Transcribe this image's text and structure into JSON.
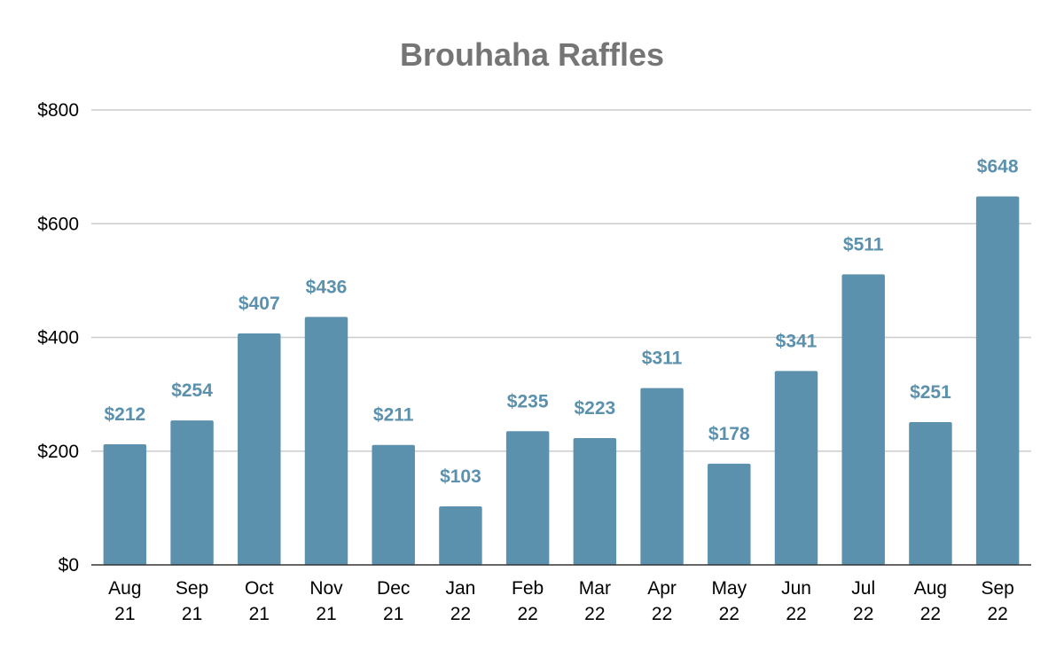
{
  "chart_data": {
    "type": "bar",
    "title": "Brouhaha Raffles",
    "xlabel": "",
    "ylabel": "",
    "categories": [
      [
        "Aug",
        "21"
      ],
      [
        "Sep",
        "21"
      ],
      [
        "Oct",
        "21"
      ],
      [
        "Nov",
        "21"
      ],
      [
        "Dec",
        "21"
      ],
      [
        "Jan",
        "22"
      ],
      [
        "Feb",
        "22"
      ],
      [
        "Mar",
        "22"
      ],
      [
        "Apr",
        "22"
      ],
      [
        "May",
        "22"
      ],
      [
        "Jun",
        "22"
      ],
      [
        "Jul",
        "22"
      ],
      [
        "Aug",
        "22"
      ],
      [
        "Sep",
        "22"
      ]
    ],
    "values": [
      212,
      254,
      407,
      436,
      211,
      103,
      235,
      223,
      311,
      178,
      341,
      511,
      251,
      648
    ],
    "data_labels": [
      "$212",
      "$254",
      "$407",
      "$436",
      "$211",
      "$103",
      "$235",
      "$223",
      "$311",
      "$178",
      "$341",
      "$511",
      "$251",
      "$648"
    ],
    "ylim": [
      0,
      800
    ],
    "yticks": [
      0,
      200,
      400,
      600,
      800
    ],
    "ytick_labels": [
      "$0",
      "$200",
      "$400",
      "$600",
      "$800"
    ],
    "grid": true,
    "legend": "none",
    "colors": {
      "bar": "#5b91ad",
      "label": "#5b91ad",
      "title": "#757575"
    }
  }
}
